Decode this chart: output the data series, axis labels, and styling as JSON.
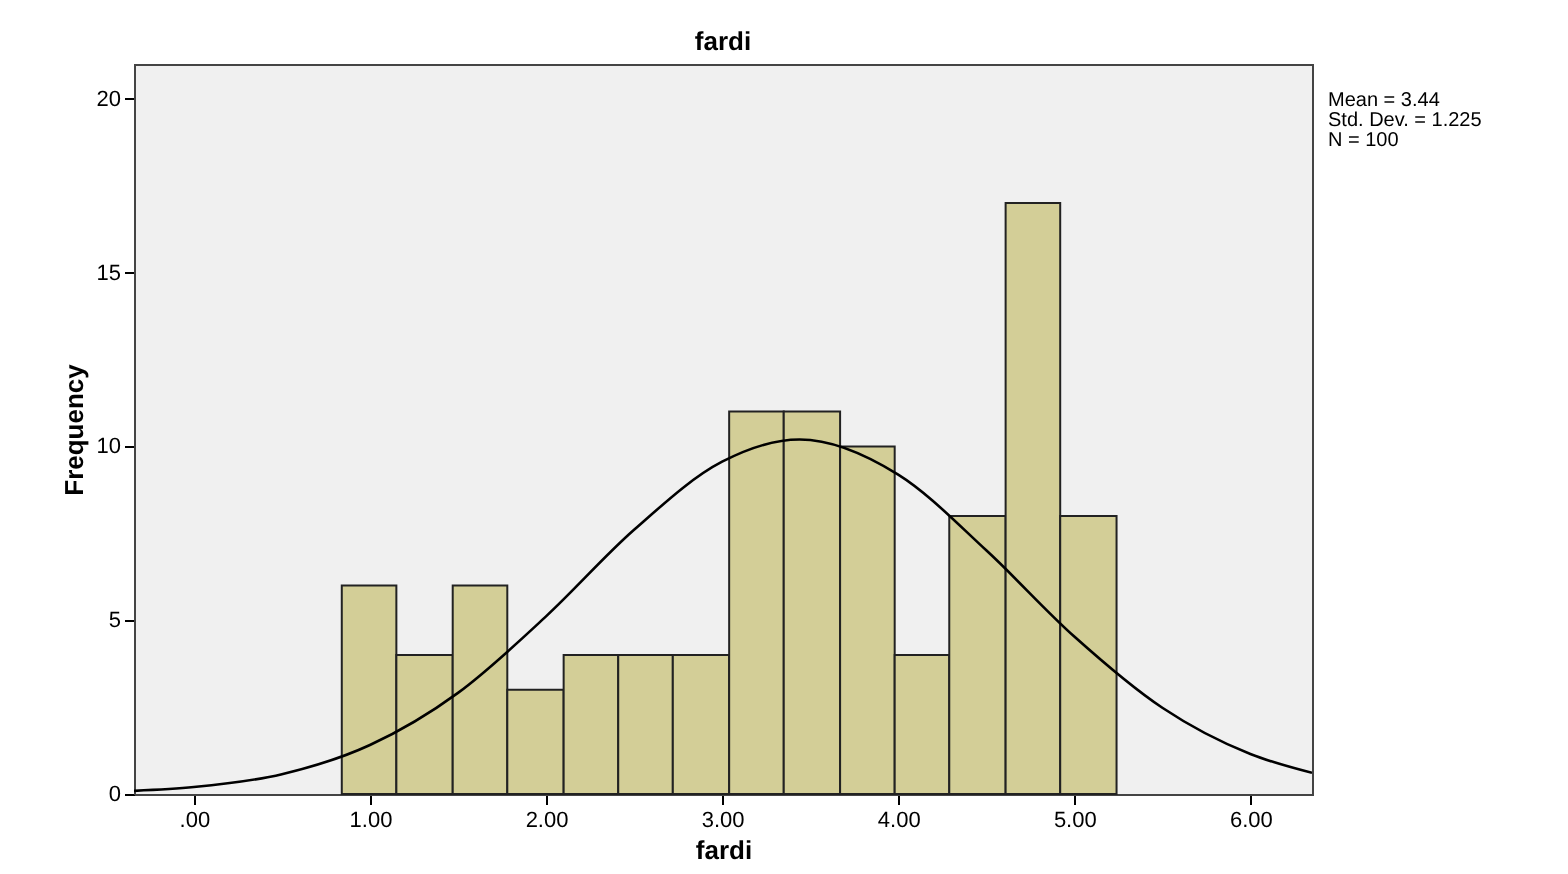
{
  "chart_data": {
    "type": "histogram",
    "title": "fardi",
    "xlabel": "fardi",
    "ylabel": "Frequency",
    "bins": [
      0.84,
      1.15,
      1.47,
      1.78,
      2.1,
      2.41,
      2.72,
      3.04,
      3.35,
      3.67,
      3.98,
      4.29,
      4.61,
      4.92,
      5.24
    ],
    "values": [
      6,
      4,
      6,
      3,
      4,
      4,
      4,
      11,
      11,
      10,
      4,
      8,
      17,
      8
    ],
    "color": "#d3ce97",
    "series": [
      {
        "type": "line",
        "color": "#000000",
        "x": [
          -0.34,
          0,
          0.5,
          1.0,
          1.5,
          2.0,
          2.5,
          3.0,
          3.44,
          4.0,
          4.5,
          5.0,
          5.5,
          6.0,
          6.35
        ],
        "values": [
          0.09,
          0.2,
          0.57,
          1.41,
          2.91,
          5.11,
          7.6,
          9.56,
          10.2,
          9.19,
          7.01,
          4.53,
          2.48,
          1.15,
          0.61
        ]
      }
    ],
    "xlim": [
      -0.34,
      6.35
    ],
    "ylim": [
      0,
      21
    ],
    "xticks": [
      {
        "value": 0,
        "label": ".00"
      },
      {
        "value": 1,
        "label": "1.00"
      },
      {
        "value": 2,
        "label": "2.00"
      },
      {
        "value": 3,
        "label": "3.00"
      },
      {
        "value": 4,
        "label": "4.00"
      },
      {
        "value": 5,
        "label": "5.00"
      },
      {
        "value": 6,
        "label": "6.00"
      }
    ],
    "yticks": [
      0,
      5,
      10,
      15,
      20
    ],
    "grid": false,
    "annotations": [
      "Mean = 3.44",
      "Std. Dev. = 1.225",
      "N = 100"
    ]
  }
}
